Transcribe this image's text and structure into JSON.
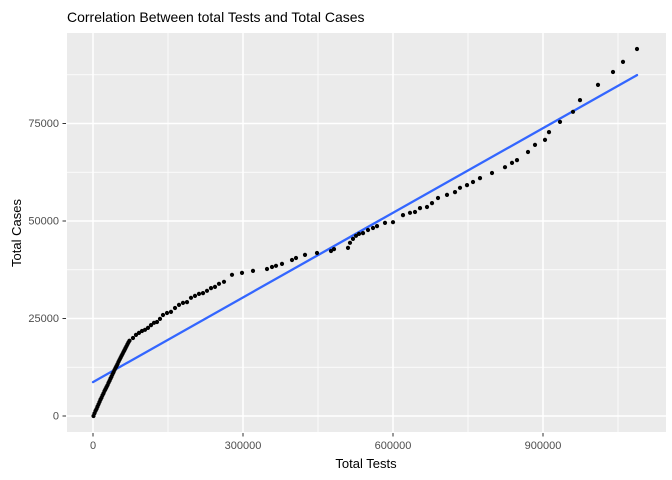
{
  "title": "Correlation Between total Tests and Total Cases",
  "colors": {
    "panel_background": "#EBEBEB",
    "gridline": "#FFFFFF",
    "point": "#000000",
    "trend_line": "#3366FF",
    "tick_label": "#4D4D4D",
    "text": "#000000",
    "figure_background": "#FFFFFF"
  },
  "chart_data": {
    "type": "scatter",
    "title": "Correlation Between total Tests and Total Cases",
    "xlabel": "Total Tests",
    "ylabel": "Total Cases",
    "xlim": [
      -52000,
      1146000
    ],
    "ylim": [
      -4100,
      98200
    ],
    "x_ticks": [
      0,
      300000,
      600000,
      900000
    ],
    "x_tick_labels": [
      "0",
      "300000",
      "600000",
      "900000"
    ],
    "y_ticks": [
      0,
      25000,
      50000,
      75000
    ],
    "y_tick_labels": [
      "0",
      "25000",
      "50000",
      "75000"
    ],
    "x_minor_ticks": [
      150000,
      450000,
      750000,
      1050000
    ],
    "y_minor_ticks": [
      12500,
      37500,
      62500,
      87500
    ],
    "grid": "white major and minor gridlines on gray panel",
    "legend": "none",
    "trend_line": {
      "type": "linear",
      "x1": 0,
      "y1": 8700,
      "x2": 1088000,
      "y2": 87400
    },
    "points": [
      [
        1000,
        0
      ],
      [
        3000,
        700
      ],
      [
        5000,
        1300
      ],
      [
        7000,
        1800
      ],
      [
        9000,
        2400
      ],
      [
        11000,
        3000
      ],
      [
        13000,
        3600
      ],
      [
        15000,
        4200
      ],
      [
        17000,
        4700
      ],
      [
        19000,
        5300
      ],
      [
        21000,
        5800
      ],
      [
        23000,
        6400
      ],
      [
        25000,
        6900
      ],
      [
        27000,
        7400
      ],
      [
        29000,
        7900
      ],
      [
        31000,
        8500
      ],
      [
        33000,
        9000
      ],
      [
        35000,
        9600
      ],
      [
        37000,
        10100
      ],
      [
        39000,
        10700
      ],
      [
        41000,
        11200
      ],
      [
        43000,
        11800
      ],
      [
        45000,
        12300
      ],
      [
        47000,
        12800
      ],
      [
        49000,
        13300
      ],
      [
        51000,
        13900
      ],
      [
        53000,
        14400
      ],
      [
        55000,
        14900
      ],
      [
        57000,
        15400
      ],
      [
        59000,
        15900
      ],
      [
        61000,
        16400
      ],
      [
        63000,
        16900
      ],
      [
        65000,
        17400
      ],
      [
        67000,
        17900
      ],
      [
        69000,
        18400
      ],
      [
        71000,
        18900
      ],
      [
        73000,
        19300
      ],
      [
        80000,
        20000
      ],
      [
        86000,
        20800
      ],
      [
        92000,
        21300
      ],
      [
        98000,
        21800
      ],
      [
        104000,
        22100
      ],
      [
        110000,
        22600
      ],
      [
        116000,
        23300
      ],
      [
        122000,
        23900
      ],
      [
        128000,
        24100
      ],
      [
        134000,
        24900
      ],
      [
        140000,
        25900
      ],
      [
        148000,
        26400
      ],
      [
        156000,
        26700
      ],
      [
        164000,
        27700
      ],
      [
        172000,
        28500
      ],
      [
        180000,
        29000
      ],
      [
        188000,
        29200
      ],
      [
        196000,
        30300
      ],
      [
        204000,
        30800
      ],
      [
        212000,
        31300
      ],
      [
        220000,
        31500
      ],
      [
        228000,
        32100
      ],
      [
        236000,
        32800
      ],
      [
        244000,
        33100
      ],
      [
        252000,
        33900
      ],
      [
        262000,
        34400
      ],
      [
        278000,
        36200
      ],
      [
        298000,
        36700
      ],
      [
        320000,
        37200
      ],
      [
        348000,
        37700
      ],
      [
        358000,
        38200
      ],
      [
        366000,
        38500
      ],
      [
        378000,
        39000
      ],
      [
        398000,
        40000
      ],
      [
        406000,
        40500
      ],
      [
        424000,
        41300
      ],
      [
        448000,
        41800
      ],
      [
        476000,
        42300
      ],
      [
        482000,
        42800
      ],
      [
        510000,
        43100
      ],
      [
        514000,
        44400
      ],
      [
        520000,
        45400
      ],
      [
        526000,
        46200
      ],
      [
        532000,
        46700
      ],
      [
        540000,
        46900
      ],
      [
        550000,
        47700
      ],
      [
        560000,
        48200
      ],
      [
        568000,
        48700
      ],
      [
        584000,
        49500
      ],
      [
        600000,
        49700
      ],
      [
        620000,
        51500
      ],
      [
        634000,
        52100
      ],
      [
        644000,
        52300
      ],
      [
        654000,
        53300
      ],
      [
        668000,
        53600
      ],
      [
        678000,
        54600
      ],
      [
        690000,
        55900
      ],
      [
        708000,
        56700
      ],
      [
        724000,
        57400
      ],
      [
        734000,
        58500
      ],
      [
        748000,
        59200
      ],
      [
        760000,
        60000
      ],
      [
        774000,
        61000
      ],
      [
        798000,
        62300
      ],
      [
        824000,
        63800
      ],
      [
        838000,
        64900
      ],
      [
        848000,
        65600
      ],
      [
        870000,
        67700
      ],
      [
        884000,
        69500
      ],
      [
        904000,
        70800
      ],
      [
        912000,
        72800
      ],
      [
        934000,
        75400
      ],
      [
        960000,
        78000
      ],
      [
        974000,
        81000
      ],
      [
        1010000,
        84900
      ],
      [
        1040000,
        88200
      ],
      [
        1060000,
        90800
      ],
      [
        1088000,
        94100
      ]
    ]
  }
}
